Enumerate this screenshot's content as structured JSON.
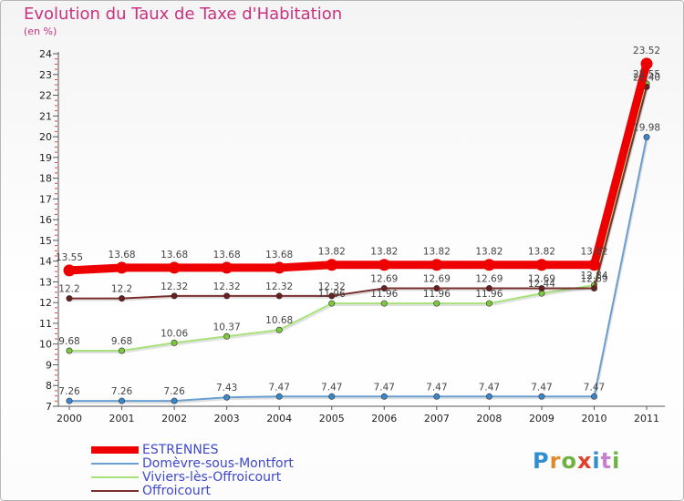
{
  "title": "Evolution du Taux de Taxe d'Habitation",
  "unit_label": "(en %)",
  "logo": {
    "letters": [
      "P",
      "r",
      "o",
      "x",
      "i",
      "t",
      "i"
    ],
    "colors": [
      "#2f8fd0",
      "#e08a2c",
      "#6db33f",
      "#e0422c",
      "#2f8fd0",
      "#c87fcf",
      "#6db33f"
    ]
  },
  "chart_data": {
    "type": "line",
    "title": "Evolution du Taux de Taxe d'Habitation",
    "ylabel": "(en %)",
    "xlabel": "",
    "x": [
      "2000",
      "2001",
      "2002",
      "2003",
      "2004",
      "2005",
      "2006",
      "2007",
      "2008",
      "2009",
      "2010",
      "2011"
    ],
    "ylim": [
      7,
      24
    ],
    "yticks": [
      7,
      8,
      9,
      10,
      11,
      12,
      13,
      14,
      15,
      16,
      17,
      18,
      19,
      20,
      21,
      22,
      23,
      24
    ],
    "grid": false,
    "series": [
      {
        "name": "Domèvre-sous-Montfort",
        "color": "#6a9fd0",
        "marker": "#3a86c8",
        "values": [
          7.26,
          7.26,
          7.26,
          7.43,
          7.47,
          7.47,
          7.47,
          7.47,
          7.47,
          7.47,
          7.47,
          19.98
        ],
        "labels": [
          "7.26",
          "7.26",
          "7.26",
          "7.43",
          "7.47",
          "7.47",
          "7.47",
          "7.47",
          "7.47",
          "7.47",
          "7.47",
          "19.98"
        ]
      },
      {
        "name": "Viviers-lès-Offroicourt",
        "color": "#a8e07a",
        "marker": "#7cc840",
        "values": [
          9.68,
          9.68,
          10.06,
          10.37,
          10.68,
          11.96,
          11.96,
          11.96,
          11.96,
          12.44,
          12.84,
          22.55
        ],
        "labels": [
          "9.68",
          "9.68",
          "10.06",
          "10.37",
          "10.68",
          "11.96",
          "11.96",
          "11.96",
          "11.96",
          "12.44",
          "12.84",
          "22.55"
        ]
      },
      {
        "name": "Offroicourt",
        "color": "#7a2e2e",
        "marker": "#6a1e1e",
        "values": [
          12.2,
          12.2,
          12.32,
          12.32,
          12.32,
          12.32,
          12.69,
          12.69,
          12.69,
          12.69,
          12.69,
          22.4
        ],
        "labels": [
          "12.2",
          "12.2",
          "12.32",
          "12.32",
          "12.32",
          "12.32",
          "12.69",
          "12.69",
          "12.69",
          "12.69",
          "12.69",
          "22.40"
        ]
      },
      {
        "name": "ESTRENNES",
        "color": "#ee0000",
        "marker": "#ee0000",
        "values": [
          13.55,
          13.68,
          13.68,
          13.68,
          13.68,
          13.82,
          13.82,
          13.82,
          13.82,
          13.82,
          13.82,
          23.52
        ],
        "labels": [
          "13.55",
          "13.68",
          "13.68",
          "13.68",
          "13.68",
          "13.82",
          "13.82",
          "13.82",
          "13.82",
          "13.82",
          "13.82",
          "23.52"
        ]
      }
    ],
    "legend": {
      "placement": "bottom-left",
      "order": [
        "ESTRENNES",
        "Domèvre-sous-Montfort",
        "Viviers-lès-Offroicourt",
        "Offroicourt"
      ]
    }
  }
}
